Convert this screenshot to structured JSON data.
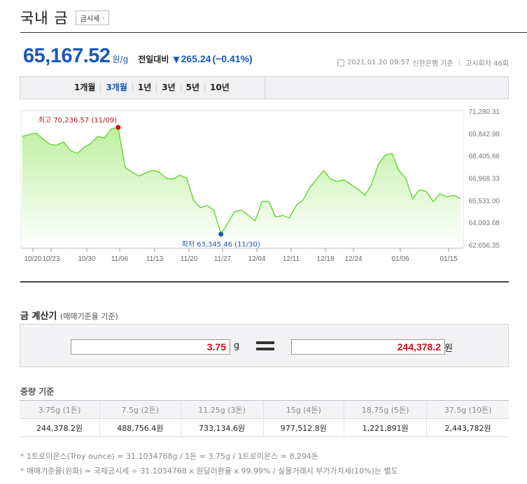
{
  "header": {
    "title": "국내 금",
    "quote_button": "금시세"
  },
  "price": {
    "value": "65,167.52",
    "unit": "원/g",
    "compare_label": "전일대비",
    "change": "265.24",
    "change_pct": "(−0.41%)"
  },
  "meta": {
    "timestamp": "2021.01.20 09:57",
    "source": "신한은행 기준",
    "notice_round": "고시회차 46회"
  },
  "tabs": [
    {
      "label": "1개월",
      "active": false
    },
    {
      "label": "3개월",
      "active": true
    },
    {
      "label": "1년",
      "active": false
    },
    {
      "label": "3년",
      "active": false
    },
    {
      "label": "5년",
      "active": false
    },
    {
      "label": "10년",
      "active": false
    }
  ],
  "colors": {
    "price_blue": "#1a57b8",
    "up_red": "#d0101b",
    "line_green": "#6dd63a"
  },
  "chart_data": {
    "type": "area",
    "y_ticks": [
      "71,280.31",
      "69,842.98",
      "68,405.66",
      "66,968.33",
      "65,531.00",
      "64,093.68",
      "62,656.35"
    ],
    "ylim": [
      62656.35,
      71280.31
    ],
    "x_ticks": [
      "10/20",
      "10/23",
      "10/30",
      "11/06",
      "11/13",
      "11/20",
      "11/27",
      "12/04",
      "12/11",
      "12/18",
      "12/24",
      "01/06",
      "01/15"
    ],
    "high_label": "최고 70,236.57 (11/09)",
    "low_label": "최저 63,345.46 (11/30)",
    "values": [
      69650,
      69780,
      69870,
      69500,
      69150,
      69080,
      69300,
      68750,
      68550,
      68950,
      69200,
      69650,
      69550,
      70150,
      70236.57,
      67650,
      67350,
      67100,
      67300,
      67450,
      67350,
      66950,
      66900,
      67150,
      66950,
      65550,
      65050,
      65200,
      64850,
      63345.46,
      64050,
      64800,
      64900,
      64550,
      64200,
      65450,
      65450,
      64450,
      64550,
      64400,
      65200,
      65550,
      66350,
      66900,
      67450,
      66900,
      66750,
      66850,
      66550,
      66250,
      65850,
      66550,
      67850,
      68450,
      68550,
      67450,
      66950,
      65650,
      66200,
      66100,
      65450,
      65950,
      65750,
      65850,
      65650
    ]
  },
  "calculator": {
    "title": "금 계산기",
    "subtitle": "(매매기준율 기준)",
    "weight_value": "3.75",
    "weight_unit": "g",
    "result_value": "244,378.2",
    "result_unit": "원"
  },
  "weights": {
    "title": "중량 기준",
    "headers": [
      "3.75g (1돈)",
      "7.5g (2돈)",
      "11.25g (3돈)",
      "15g (4돈)",
      "18.75g (5돈)",
      "37.5g (10돈)"
    ],
    "values": [
      "244,378.2원",
      "488,756.4원",
      "733,134.6원",
      "977,512.8원",
      "1,221,891원",
      "2,443,782원"
    ]
  },
  "notes": [
    "* 1트로이온스(Troy ounce) = 31.1034768g / 1돈 = 3.75g / 1트로이온스 = 8.294돈",
    "* 매매기준율(원화) = 국제금시세 ÷ 31.1034768 x 원달러환율 x 99.99% / 실물거래시 부가가치세(10%)는 별도"
  ]
}
